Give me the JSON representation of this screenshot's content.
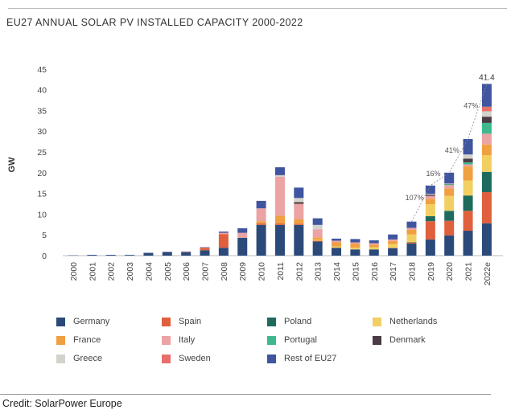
{
  "chart_data": {
    "type": "bar",
    "stacked": true,
    "title": "EU27 ANNUAL SOLAR PV INSTALLED CAPACITY 2000-2022",
    "xlabel": "",
    "ylabel": "GW",
    "ylim": [
      0,
      45
    ],
    "yticks": [
      0,
      5,
      10,
      15,
      20,
      25,
      30,
      35,
      40,
      45
    ],
    "categories": [
      "2000",
      "2001",
      "2002",
      "2003",
      "2004",
      "2005",
      "2006",
      "2007",
      "2008",
      "2009",
      "2010",
      "2011",
      "2012",
      "2013",
      "2014",
      "2015",
      "2016",
      "2017",
      "2018",
      "2019",
      "2020",
      "2021",
      "2022e"
    ],
    "series": [
      {
        "name": "Germany",
        "color": "#2b4a7a",
        "values": [
          0.05,
          0.1,
          0.1,
          0.15,
          0.6,
          0.8,
          0.8,
          1.3,
          1.9,
          4.3,
          7.4,
          7.4,
          7.4,
          3.4,
          1.9,
          1.5,
          1.5,
          1.8,
          2.9,
          3.9,
          4.9,
          6.0,
          7.8
        ]
      },
      {
        "name": "Spain",
        "color": "#e0603d",
        "values": [
          0,
          0,
          0,
          0,
          0,
          0.05,
          0.1,
          0.6,
          3.3,
          0,
          0.4,
          0.4,
          0.3,
          0.2,
          0,
          0,
          0,
          0.1,
          0.2,
          4.4,
          3.5,
          4.8,
          7.5
        ]
      },
      {
        "name": "Poland",
        "color": "#1e6b5e",
        "values": [
          0,
          0,
          0,
          0,
          0,
          0,
          0,
          0,
          0,
          0,
          0,
          0,
          0,
          0,
          0,
          0,
          0,
          0,
          0.1,
          1.2,
          2.4,
          3.7,
          4.9
        ]
      },
      {
        "name": "Netherlands",
        "color": "#f2cf63",
        "values": [
          0,
          0,
          0,
          0,
          0,
          0,
          0,
          0,
          0,
          0,
          0,
          0,
          0,
          0.2,
          0.3,
          0.4,
          0.5,
          0.9,
          1.9,
          2.9,
          3.6,
          3.6,
          4.0
        ]
      },
      {
        "name": "France",
        "color": "#f0a040",
        "values": [
          0,
          0,
          0,
          0,
          0,
          0,
          0,
          0,
          0,
          0,
          0.5,
          1.8,
          1.1,
          0.6,
          1.0,
          1.0,
          0.6,
          0.7,
          1.1,
          1.3,
          1.8,
          3.4,
          2.6
        ]
      },
      {
        "name": "Italy",
        "color": "#eba3a3",
        "values": [
          0,
          0,
          0,
          0,
          0,
          0,
          0,
          0.05,
          0.3,
          1.2,
          3.1,
          9.4,
          3.7,
          1.9,
          0.4,
          0.3,
          0.4,
          0.4,
          0.5,
          0.7,
          0.8,
          0.5,
          2.6
        ]
      },
      {
        "name": "Portugal",
        "color": "#3fb88f",
        "values": [
          0,
          0,
          0,
          0,
          0,
          0,
          0,
          0,
          0,
          0,
          0,
          0,
          0,
          0,
          0,
          0,
          0,
          0,
          0,
          0,
          0.2,
          0.5,
          2.6
        ]
      },
      {
        "name": "Denmark",
        "color": "#4a3b45",
        "values": [
          0,
          0,
          0,
          0,
          0,
          0,
          0,
          0,
          0,
          0,
          0,
          0,
          0.4,
          0,
          0,
          0,
          0,
          0,
          0,
          0.3,
          0.1,
          0.9,
          1.5
        ]
      },
      {
        "name": "Greece",
        "color": "#d4d2cc",
        "values": [
          0,
          0,
          0,
          0,
          0,
          0,
          0,
          0,
          0,
          0,
          0,
          0.4,
          1.0,
          1.1,
          0,
          0,
          0,
          0,
          0,
          0.2,
          0.1,
          1.0,
          1.3
        ]
      },
      {
        "name": "Sweden",
        "color": "#e8706a",
        "values": [
          0,
          0,
          0,
          0,
          0,
          0,
          0,
          0,
          0,
          0,
          0,
          0,
          0,
          0,
          0,
          0,
          0,
          0,
          0,
          0,
          0,
          0,
          1.1
        ]
      },
      {
        "name": "Rest of EU27",
        "color": "#3f55a0",
        "values": [
          0.05,
          0.1,
          0.1,
          0.05,
          0.1,
          0.1,
          0.1,
          0.1,
          0.3,
          1.1,
          1.8,
          1.9,
          2.5,
          1.6,
          0.5,
          0.8,
          0.7,
          1.2,
          1.5,
          2.0,
          2.6,
          3.7,
          5.5
        ]
      }
    ],
    "annotations": [
      {
        "text": "107%",
        "between": [
          "2018",
          "2019"
        ]
      },
      {
        "text": "16%",
        "between": [
          "2019",
          "2020"
        ]
      },
      {
        "text": "41%",
        "between": [
          "2020",
          "2021"
        ]
      },
      {
        "text": "47%",
        "between": [
          "2021",
          "2022e"
        ]
      }
    ],
    "total_label": {
      "category": "2022e",
      "text": "41.4"
    },
    "legend_position": "bottom",
    "grid": false
  },
  "credit": "Credit: SolarPower Europe"
}
